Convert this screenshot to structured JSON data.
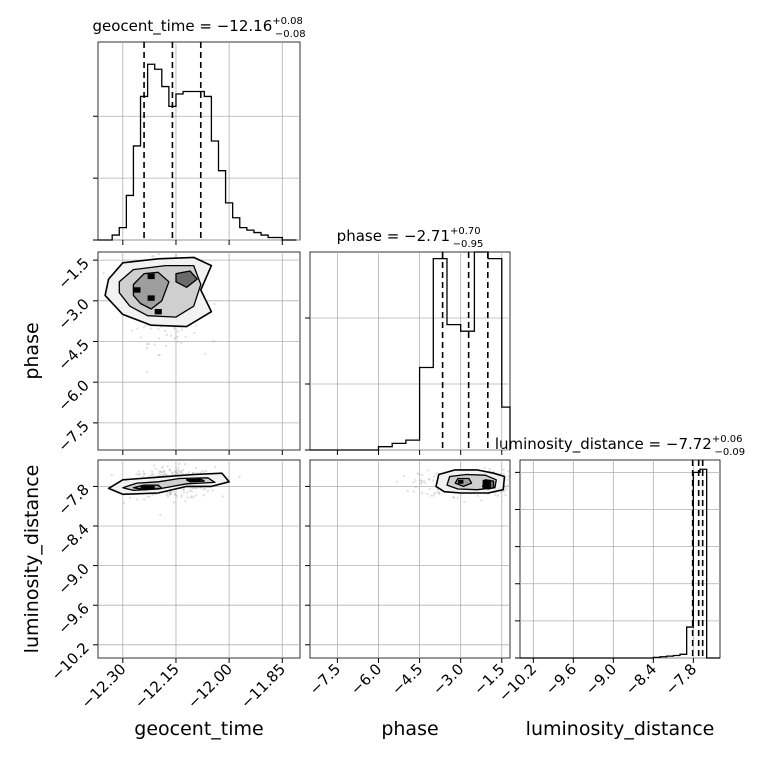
{
  "chart_data": {
    "type": "corner",
    "parameters": [
      {
        "name": "geocent_time",
        "title": {
          "prefix": "geocent_time = ",
          "median": "−12.16",
          "plus": "+0.08",
          "minus": "−0.08"
        },
        "range": [
          -12.37,
          -11.8
        ],
        "ticks": [
          -12.3,
          -12.15,
          -12.0,
          -11.85
        ],
        "tick_labels": [
          "−12.30",
          "−12.15",
          "−12.00",
          "−11.85"
        ],
        "quantiles": [
          -12.24,
          -12.16,
          -12.08
        ],
        "histogram": {
          "edges": [
            -12.37,
            -12.35,
            -12.33,
            -12.31,
            -12.29,
            -12.27,
            -12.25,
            -12.23,
            -12.21,
            -12.19,
            -12.17,
            -12.15,
            -12.13,
            -12.11,
            -12.09,
            -12.07,
            -12.05,
            -12.03,
            -12.01,
            -11.99,
            -11.97,
            -11.95,
            -11.93,
            -11.91,
            -11.89,
            -11.87,
            -11.85,
            -11.83,
            -11.81
          ],
          "counts": [
            0,
            0,
            2,
            5,
            18,
            38,
            58,
            71,
            69,
            62,
            54,
            59,
            60,
            60,
            60,
            58,
            40,
            28,
            15,
            9,
            5,
            4,
            3,
            2,
            1,
            1,
            0,
            0
          ]
        },
        "y_ticks": [
          0,
          25,
          50
        ],
        "y_max": 80
      },
      {
        "name": "phase",
        "title": {
          "prefix": "phase = ",
          "median": "−2.71",
          "plus": "+0.70",
          "minus": "−0.95"
        },
        "range": [
          -8.5,
          -1.2
        ],
        "ticks": [
          -7.5,
          -6.0,
          -4.5,
          -3.0,
          -1.5
        ],
        "tick_labels": [
          "−7.5",
          "−6.0",
          "−4.5",
          "−3.0",
          "−1.5"
        ],
        "quantiles": [
          -3.66,
          -2.71,
          -2.01
        ],
        "histogram": {
          "edges": [
            -8.5,
            -8.0,
            -7.5,
            -7.0,
            -6.5,
            -6.0,
            -5.5,
            -5.0,
            -4.5,
            -4.0,
            -3.5,
            -3.0,
            -2.5,
            -2.0,
            -1.5,
            -1.2
          ],
          "counts": [
            0,
            0,
            0,
            0,
            0,
            1,
            2,
            3,
            25,
            58,
            38,
            36,
            60,
            58,
            13
          ]
        },
        "y_ticks": [
          0,
          20,
          40
        ],
        "y_max": 60
      },
      {
        "name": "luminosity_distance",
        "title": {
          "prefix": "luminosity_distance = ",
          "median": "−7.72",
          "plus": "+0.06",
          "minus": "−0.09"
        },
        "range": [
          -10.4,
          -7.4
        ],
        "ticks": [
          -10.2,
          -9.6,
          -9.0,
          -8.4,
          -7.8
        ],
        "tick_labels": [
          "−10.2",
          "−9.6",
          "−9.0",
          "−8.4",
          "−7.8"
        ],
        "quantiles": [
          -7.81,
          -7.72,
          -7.66
        ],
        "histogram": {
          "edges": [
            -10.4,
            -10.3,
            -10.2,
            -10.1,
            -10.0,
            -9.9,
            -9.8,
            -9.7,
            -9.6,
            -9.5,
            -9.4,
            -9.3,
            -9.2,
            -9.1,
            -9.0,
            -8.9,
            -8.8,
            -8.7,
            -8.6,
            -8.5,
            -8.4,
            -8.3,
            -8.2,
            -8.1,
            -8.0,
            -7.9,
            -7.8,
            -7.7,
            -7.6,
            -7.5,
            -7.4
          ],
          "counts": [
            0,
            0,
            0,
            0,
            0,
            0,
            0,
            0,
            0,
            0,
            0,
            0,
            0,
            0,
            0,
            0,
            0,
            0,
            0,
            0,
            1,
            2,
            3,
            4,
            6,
            50,
            300,
            305,
            0,
            0
          ]
        },
        "y_ticks": [
          0,
          60,
          120,
          180,
          240,
          300
        ],
        "y_max": 320
      }
    ],
    "pairs": [
      {
        "x": "geocent_time",
        "y": "phase",
        "contours": [
          [
            [
              -12.34,
              -2.2
            ],
            [
              -12.3,
              -1.6
            ],
            [
              -12.2,
              -1.45
            ],
            [
              -12.1,
              -1.4
            ],
            [
              -12.05,
              -1.7
            ],
            [
              -12.08,
              -2.6
            ],
            [
              -12.05,
              -3.4
            ],
            [
              -12.12,
              -3.95
            ],
            [
              -12.22,
              -3.9
            ],
            [
              -12.3,
              -3.5
            ],
            [
              -12.35,
              -2.8
            ]
          ],
          [
            [
              -12.31,
              -2.3
            ],
            [
              -12.27,
              -1.85
            ],
            [
              -12.18,
              -1.7
            ],
            [
              -12.1,
              -1.7
            ],
            [
              -12.08,
              -2.4
            ],
            [
              -12.1,
              -3.2
            ],
            [
              -12.15,
              -3.6
            ],
            [
              -12.23,
              -3.55
            ],
            [
              -12.28,
              -3.2
            ],
            [
              -12.31,
              -2.7
            ]
          ],
          [
            [
              -12.27,
              -2.4
            ],
            [
              -12.24,
              -2.0
            ],
            [
              -12.2,
              -1.95
            ],
            [
              -12.17,
              -2.3
            ],
            [
              -12.19,
              -3.0
            ],
            [
              -12.22,
              -3.3
            ],
            [
              -12.25,
              -3.1
            ],
            [
              -12.27,
              -2.8
            ]
          ],
          [
            [
              -12.15,
              -2.0
            ],
            [
              -12.11,
              -1.9
            ],
            [
              -12.09,
              -2.2
            ],
            [
              -12.12,
              -2.5
            ],
            [
              -12.15,
              -2.3
            ]
          ]
        ],
        "dense_blocks": [
          [
            -12.27,
            -2.7,
            -12.25,
            -2.5
          ],
          [
            -12.23,
            -2.2,
            -12.21,
            -2.0
          ],
          [
            -12.23,
            -3.0,
            -12.21,
            -2.8
          ],
          [
            -12.21,
            -3.5,
            -12.19,
            -3.3
          ]
        ],
        "scatter_center": [
          -12.18,
          -2.9
        ],
        "scatter_spread": [
          0.05,
          0.8
        ]
      },
      {
        "x": "geocent_time",
        "y": "luminosity_distance",
        "contours": [
          [
            [
              -12.34,
              -7.83
            ],
            [
              -12.3,
              -7.7
            ],
            [
              -12.2,
              -7.66
            ],
            [
              -12.1,
              -7.62
            ],
            [
              -12.02,
              -7.6
            ],
            [
              -12.0,
              -7.73
            ],
            [
              -12.05,
              -7.8
            ],
            [
              -12.12,
              -7.8
            ],
            [
              -12.2,
              -7.9
            ],
            [
              -12.3,
              -7.92
            ]
          ],
          [
            [
              -12.3,
              -7.82
            ],
            [
              -12.26,
              -7.75
            ],
            [
              -12.2,
              -7.73
            ],
            [
              -12.14,
              -7.68
            ],
            [
              -12.06,
              -7.67
            ],
            [
              -12.04,
              -7.74
            ],
            [
              -12.12,
              -7.76
            ],
            [
              -12.2,
              -7.84
            ],
            [
              -12.27,
              -7.86
            ]
          ],
          [
            [
              -12.27,
              -7.82
            ],
            [
              -12.24,
              -7.78
            ],
            [
              -12.2,
              -7.78
            ],
            [
              -12.19,
              -7.83
            ],
            [
              -12.24,
              -7.85
            ]
          ],
          [
            [
              -12.12,
              -7.7
            ],
            [
              -12.08,
              -7.69
            ],
            [
              -12.07,
              -7.72
            ],
            [
              -12.11,
              -7.73
            ]
          ]
        ],
        "dense_blocks": [
          [
            -12.25,
            -7.84,
            -12.21,
            -7.79
          ],
          [
            -12.12,
            -7.72,
            -12.08,
            -7.69
          ]
        ],
        "scatter_center": [
          -12.16,
          -7.75
        ],
        "scatter_spread": [
          0.06,
          0.12
        ]
      },
      {
        "x": "phase",
        "y": "luminosity_distance",
        "contours": [
          [
            [
              -3.9,
              -7.8
            ],
            [
              -3.8,
              -7.62
            ],
            [
              -3.2,
              -7.55
            ],
            [
              -2.4,
              -7.55
            ],
            [
              -1.8,
              -7.6
            ],
            [
              -1.4,
              -7.65
            ],
            [
              -1.45,
              -7.85
            ],
            [
              -2.0,
              -7.9
            ],
            [
              -3.0,
              -7.9
            ],
            [
              -3.6,
              -7.88
            ]
          ],
          [
            [
              -3.5,
              -7.78
            ],
            [
              -3.4,
              -7.65
            ],
            [
              -2.8,
              -7.62
            ],
            [
              -2.1,
              -7.63
            ],
            [
              -1.7,
              -7.7
            ],
            [
              -1.75,
              -7.82
            ],
            [
              -2.4,
              -7.85
            ],
            [
              -3.1,
              -7.84
            ]
          ],
          [
            [
              -3.2,
              -7.75
            ],
            [
              -3.1,
              -7.68
            ],
            [
              -2.7,
              -7.68
            ],
            [
              -2.6,
              -7.75
            ],
            [
              -2.9,
              -7.8
            ]
          ],
          [
            [
              -2.2,
              -7.8
            ],
            [
              -2.1,
              -7.7
            ],
            [
              -1.8,
              -7.72
            ],
            [
              -1.8,
              -7.82
            ],
            [
              -2.0,
              -7.84
            ]
          ]
        ],
        "dense_blocks": [
          [
            -2.2,
            -7.84,
            -1.9,
            -7.7
          ],
          [
            -3.1,
            -7.76,
            -2.9,
            -7.7
          ]
        ],
        "scatter_center": [
          -2.7,
          -7.75
        ],
        "scatter_spread": [
          0.9,
          0.1
        ]
      }
    ],
    "grid": true
  }
}
